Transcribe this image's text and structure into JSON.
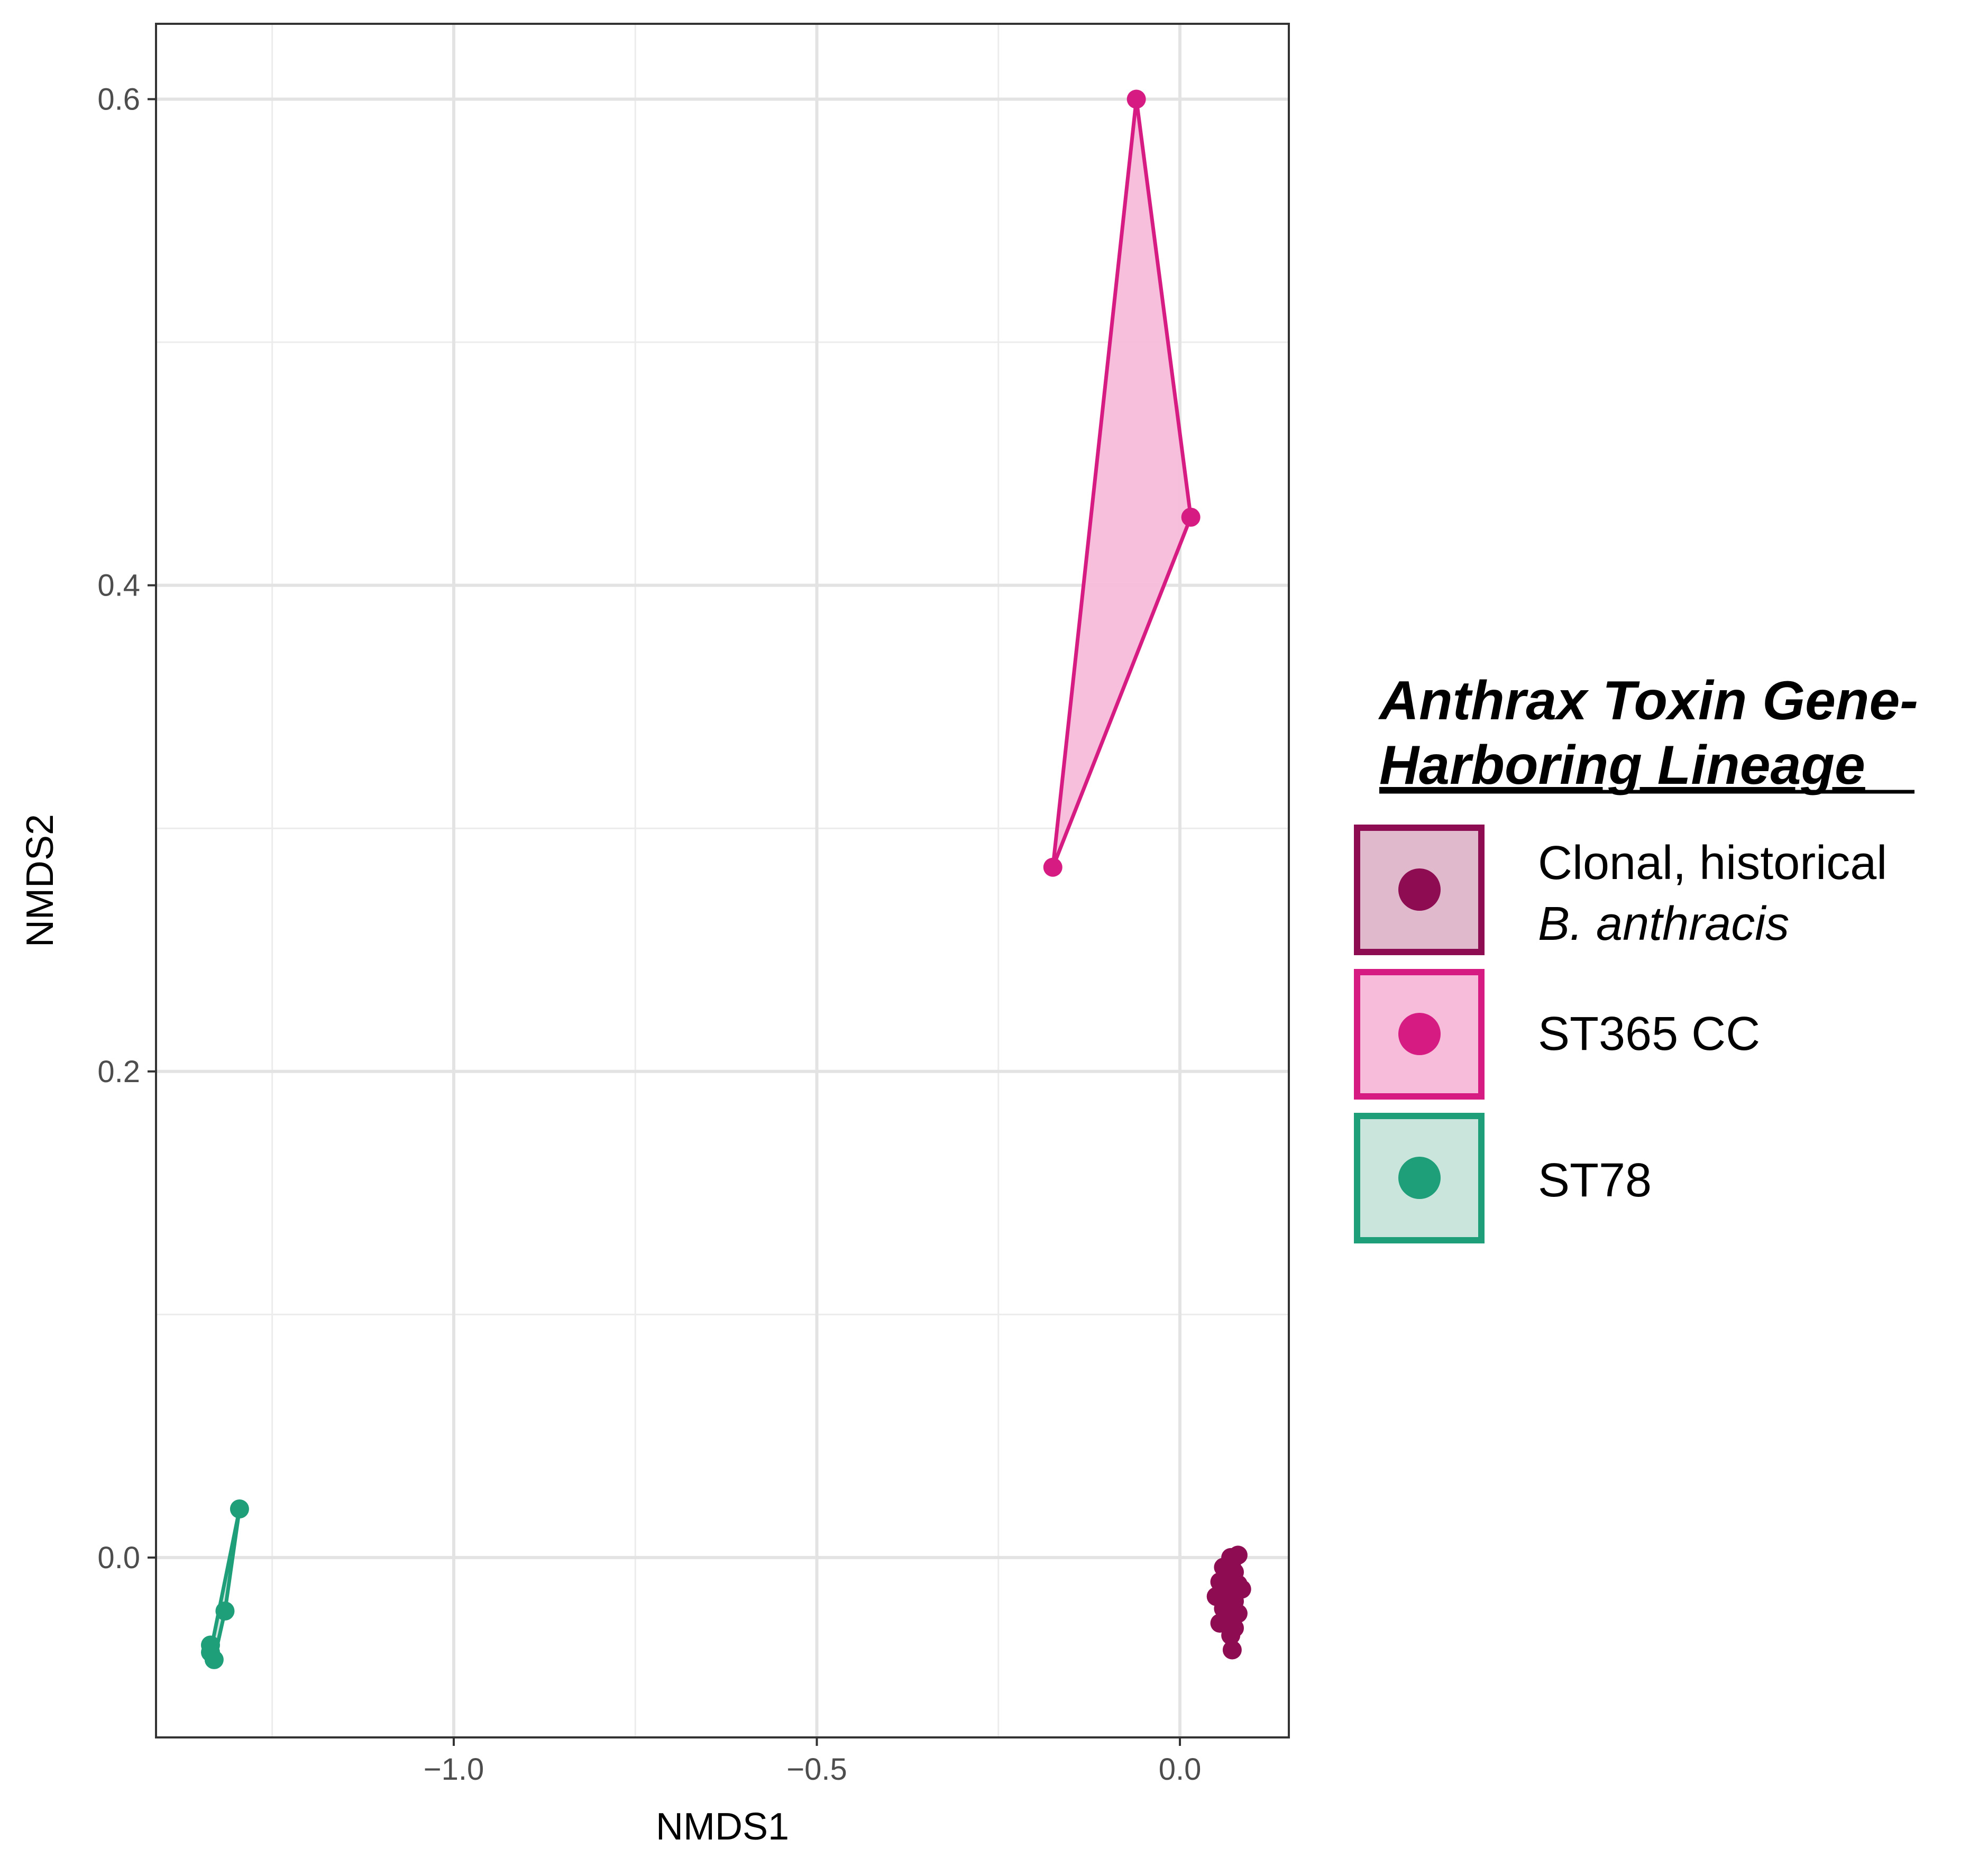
{
  "chart_data": {
    "type": "scatter",
    "xlabel": "NMDS1",
    "ylabel": "NMDS2",
    "xlim": [
      -1.41,
      0.15
    ],
    "ylim": [
      -0.074,
      0.631
    ],
    "x_ticks": [
      -1.0,
      -0.5,
      0.0
    ],
    "x_tick_labels": [
      "−1.0",
      "−0.5",
      "0.0"
    ],
    "y_ticks": [
      0.0,
      0.2,
      0.4,
      0.6
    ],
    "y_tick_labels": [
      "0.0",
      "0.2",
      "0.4",
      "0.6"
    ],
    "grid": true,
    "legend_position": "right",
    "legend_title_lines": [
      "Anthrax Toxin Gene-",
      "Harboring Lineage"
    ],
    "series": [
      {
        "name_lines": [
          "Clonal, historical",
          "B. anthracis"
        ],
        "color": "#8e0c52",
        "fill": "#e1b9cc",
        "points": [
          [
            0.07,
            -0.0
          ],
          [
            0.08,
            0.001
          ],
          [
            0.06,
            -0.004
          ],
          [
            0.075,
            -0.006
          ],
          [
            0.065,
            -0.009
          ],
          [
            0.055,
            -0.01
          ],
          [
            0.08,
            -0.011
          ],
          [
            0.07,
            -0.013
          ],
          [
            0.085,
            -0.013
          ],
          [
            0.05,
            -0.016
          ],
          [
            0.06,
            -0.017
          ],
          [
            0.075,
            -0.018
          ],
          [
            0.06,
            -0.021
          ],
          [
            0.08,
            -0.023
          ],
          [
            0.065,
            -0.026
          ],
          [
            0.055,
            -0.027
          ],
          [
            0.075,
            -0.029
          ],
          [
            0.07,
            -0.032
          ],
          [
            0.072,
            -0.038
          ]
        ],
        "hull": [
          [
            0.08,
            0.001
          ],
          [
            0.085,
            -0.013
          ],
          [
            0.072,
            -0.038
          ],
          [
            0.05,
            -0.016
          ],
          [
            0.06,
            -0.004
          ]
        ]
      },
      {
        "name_lines": [
          "ST365 CC"
        ],
        "color": "#d61c83",
        "fill": "#f7bcd9",
        "points": [
          [
            -0.06,
            0.6
          ],
          [
            0.015,
            0.428
          ],
          [
            -0.175,
            0.284
          ]
        ],
        "hull": [
          [
            -0.06,
            0.6
          ],
          [
            0.015,
            0.428
          ],
          [
            -0.175,
            0.284
          ]
        ]
      },
      {
        "name_lines": [
          "ST78"
        ],
        "color": "#1e9e79",
        "fill": "#c9e5dc",
        "points": [
          [
            -1.295,
            0.02
          ],
          [
            -1.315,
            -0.022
          ],
          [
            -1.335,
            -0.036
          ],
          [
            -1.335,
            -0.039
          ],
          [
            -1.33,
            -0.042
          ]
        ],
        "hull": [
          [
            -1.295,
            0.02
          ],
          [
            -1.315,
            -0.022
          ],
          [
            -1.33,
            -0.042
          ],
          [
            -1.335,
            -0.039
          ]
        ]
      }
    ]
  }
}
